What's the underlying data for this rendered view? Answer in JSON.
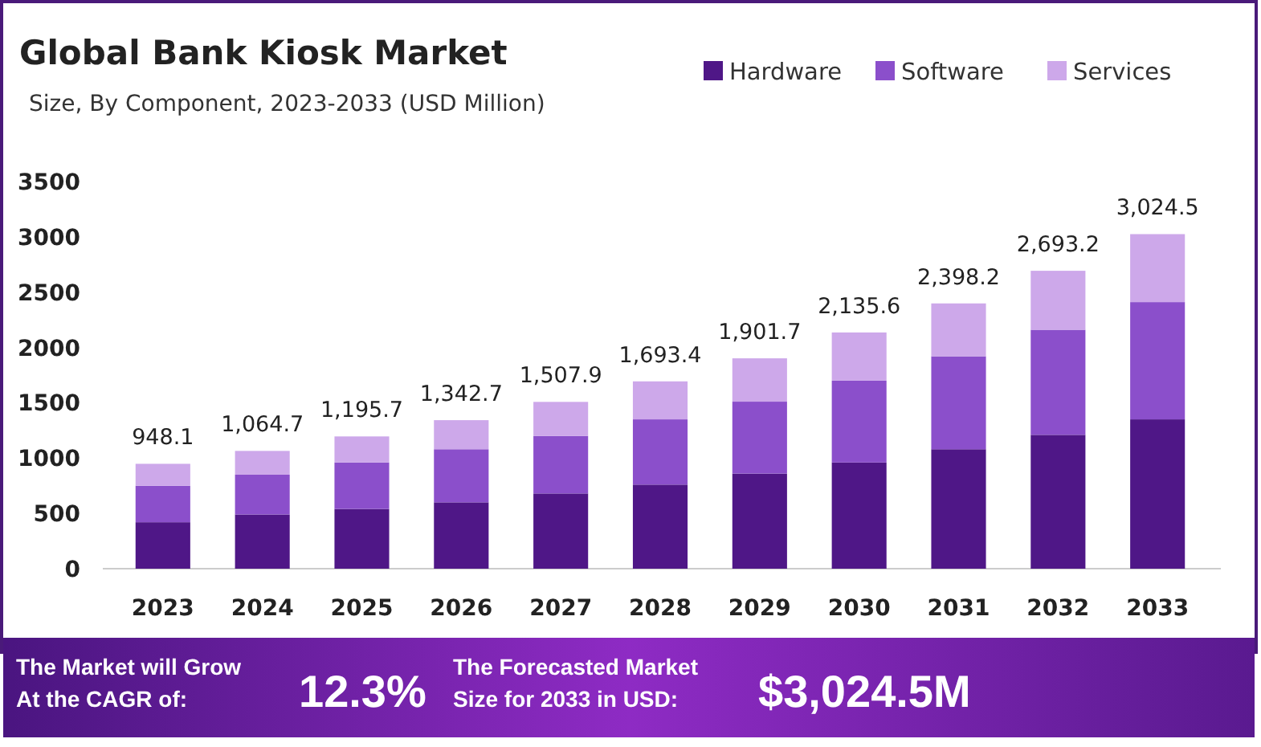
{
  "chart_data": {
    "type": "bar",
    "title": "Global Bank Kiosk Market",
    "subtitle": "Size, By Component, 2023-2033 (USD Million)",
    "categories": [
      "2023",
      "2024",
      "2025",
      "2026",
      "2027",
      "2028",
      "2029",
      "2030",
      "2031",
      "2032",
      "2033"
    ],
    "series": [
      {
        "name": "Hardware",
        "color": "#4f1787",
        "values": [
          420,
          490,
          540,
          600,
          680,
          760,
          860,
          960,
          1080,
          1210,
          1350
        ]
      },
      {
        "name": "Software",
        "color": "#8b4fcb",
        "values": [
          330,
          360,
          420,
          480,
          520,
          590,
          650,
          740,
          840,
          950,
          1060
        ]
      },
      {
        "name": "Services",
        "color": "#cda8ea",
        "values": [
          198.1,
          214.7,
          235.7,
          262.7,
          307.9,
          343.4,
          391.7,
          435.6,
          478.2,
          533.2,
          614.5
        ]
      }
    ],
    "stacked": true,
    "totals": [
      "948.1",
      "1,064.7",
      "1,195.7",
      "1,342.7",
      "1,507.9",
      "1,693.4",
      "1,901.7",
      "2,135.6",
      "2,398.2",
      "2,693.2",
      "3,024.5"
    ],
    "ylim": [
      0,
      3500
    ],
    "yticks": [
      0,
      500,
      1000,
      1500,
      2000,
      2500,
      3000,
      3500
    ],
    "grid": false,
    "legend": "top right",
    "annotations": [
      "The Market will Grow At the CAGR of:",
      "12.3%",
      "The Forecasted Market Size for 2033 in USD:",
      "$3,024.5M"
    ]
  }
}
